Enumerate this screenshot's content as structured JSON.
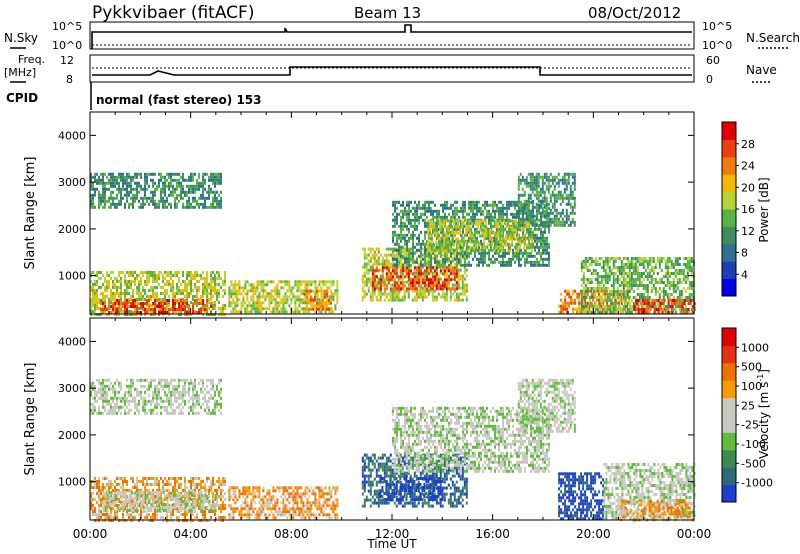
{
  "header": {
    "title": "Pykkvibaer (fitACF)",
    "beam": "Beam 13",
    "date": "08/Oct/2012"
  },
  "params": {
    "nsky_label": "N.Sky",
    "nsky_ticks": [
      "10^5",
      "10^0"
    ],
    "nsearch_label": "N.Search",
    "nsearch_ticks": [
      "10^5",
      "10^0"
    ],
    "freq_label": "Freq.",
    "freq_unit": "[MHz]",
    "freq_ticks": [
      "12",
      "8"
    ],
    "nave_label": "Nave",
    "nave_ticks": [
      "60",
      "0"
    ],
    "cpid_label": "CPID",
    "cpid_text": "normal (fast stereo)  153"
  },
  "chart_data": [
    {
      "type": "heatmap",
      "panel": "power",
      "ylabel": "Slant Range [km]",
      "yticks": [
        "4000",
        "3000",
        "2000",
        "1000"
      ],
      "ylim": [
        180,
        4500
      ],
      "xlim": [
        0,
        24
      ],
      "colorbar": {
        "label": "Power [dB]",
        "ticks": [
          "28",
          "24",
          "20",
          "16",
          "12",
          "8",
          "4"
        ],
        "colors": [
          "#0000e6",
          "#1c3fb5",
          "#2f6f8f",
          "#3a8f5a",
          "#59b342",
          "#b7d433",
          "#f3b800",
          "#f07a10",
          "#e8400e",
          "#e00000"
        ]
      },
      "regions": [
        {
          "t0": 0.0,
          "t1": 5.2,
          "r0": 2450,
          "r1": 3200,
          "level": 3
        },
        {
          "t0": 0.0,
          "t1": 5.4,
          "r0": 200,
          "r1": 1100,
          "level": 5
        },
        {
          "t0": 0.4,
          "t1": 4.8,
          "r0": 200,
          "r1": 500,
          "level": 8
        },
        {
          "t0": 5.5,
          "t1": 9.8,
          "r0": 200,
          "r1": 900,
          "level": 5
        },
        {
          "t0": 8.5,
          "t1": 9.6,
          "r0": 300,
          "r1": 700,
          "level": 7
        },
        {
          "t0": 10.8,
          "t1": 15.0,
          "r0": 500,
          "r1": 1600,
          "level": 5
        },
        {
          "t0": 11.2,
          "t1": 14.6,
          "r0": 700,
          "r1": 1200,
          "level": 8
        },
        {
          "t0": 12.0,
          "t1": 18.2,
          "r0": 1200,
          "r1": 2600,
          "level": 3
        },
        {
          "t0": 13.4,
          "t1": 17.6,
          "r0": 1500,
          "r1": 2200,
          "level": 5
        },
        {
          "t0": 17.0,
          "t1": 19.3,
          "r0": 2100,
          "r1": 3200,
          "level": 3
        },
        {
          "t0": 18.6,
          "t1": 21.4,
          "r0": 200,
          "r1": 700,
          "level": 7
        },
        {
          "t0": 19.5,
          "t1": 24.0,
          "r0": 200,
          "r1": 1400,
          "level": 4
        },
        {
          "t0": 21.6,
          "t1": 24.0,
          "r0": 200,
          "r1": 500,
          "level": 8
        }
      ]
    },
    {
      "type": "heatmap",
      "panel": "velocity",
      "ylabel": "Slant Range [km]",
      "yticks": [
        "4000",
        "3000",
        "2000",
        "1000"
      ],
      "ylim": [
        180,
        4500
      ],
      "xlim": [
        0,
        24
      ],
      "xticks": [
        "00:00",
        "04:00",
        "08:00",
        "12:00",
        "16:00",
        "20:00",
        "00:00"
      ],
      "xlabel": "Time UT",
      "colorbar": {
        "label": "Velocity [m s",
        "label_sup": "-1",
        "label_close": "]",
        "ticks": [
          "1000",
          "500",
          "100",
          "25",
          "-25",
          "-100",
          "-500",
          "-1000"
        ],
        "colors": [
          "#1c3fcf",
          "#2c6a7a",
          "#3c8a50",
          "#5ebd3a",
          "#c8c8c0",
          "#c8c8c0",
          "#f59a00",
          "#f07000",
          "#e83010",
          "#e00000"
        ]
      },
      "regions": [
        {
          "t0": 0.0,
          "t1": 5.2,
          "r0": 2450,
          "r1": 3200,
          "level": 4
        },
        {
          "t0": 0.0,
          "t1": 5.4,
          "r0": 200,
          "r1": 1100,
          "level": 6
        },
        {
          "t0": 0.5,
          "t1": 5.0,
          "r0": 400,
          "r1": 800,
          "level": 4
        },
        {
          "t0": 5.5,
          "t1": 9.8,
          "r0": 200,
          "r1": 900,
          "level": 6
        },
        {
          "t0": 10.8,
          "t1": 15.0,
          "r0": 500,
          "r1": 1600,
          "level": 1
        },
        {
          "t0": 11.5,
          "t1": 14.0,
          "r0": 600,
          "r1": 1100,
          "level": 0
        },
        {
          "t0": 12.0,
          "t1": 18.2,
          "r0": 1200,
          "r1": 2600,
          "level": 4
        },
        {
          "t0": 17.0,
          "t1": 19.3,
          "r0": 2100,
          "r1": 3200,
          "level": 4
        },
        {
          "t0": 18.6,
          "t1": 20.4,
          "r0": 200,
          "r1": 1200,
          "level": 0
        },
        {
          "t0": 20.4,
          "t1": 24.0,
          "r0": 200,
          "r1": 1400,
          "level": 4
        },
        {
          "t0": 21.0,
          "t1": 24.0,
          "r0": 200,
          "r1": 600,
          "level": 6
        }
      ]
    }
  ]
}
